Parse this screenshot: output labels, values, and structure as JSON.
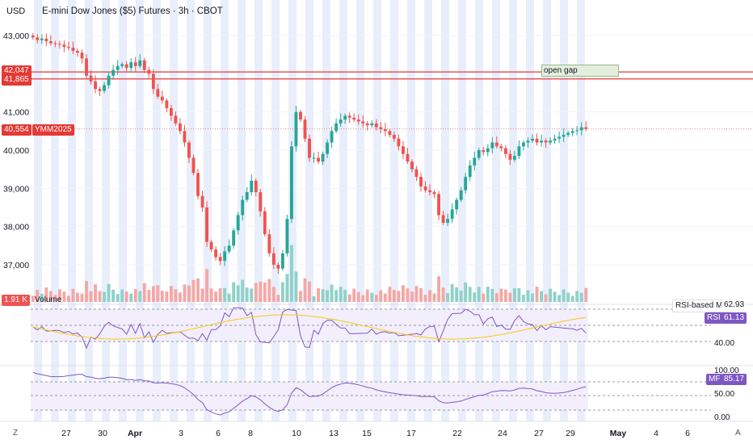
{
  "header": {
    "currency": "USD",
    "title": "E-mini Dow Jones ($5) Futures · 3h · CBOT"
  },
  "price_axis": {
    "ticks": [
      "43,000",
      "41,000",
      "40,000",
      "39,000",
      "38,000",
      "37,000"
    ],
    "tags": [
      {
        "text": "42,047",
        "color": "#f23645"
      },
      {
        "text": "41,865",
        "color": "#f23645"
      },
      {
        "text": "40,554",
        "color": "#f23645"
      },
      {
        "text": "YMM2025",
        "color": "#f23645"
      }
    ],
    "volume_tag": "1.91 K",
    "volume_label": "Volume"
  },
  "annotations": {
    "gap_label": "open gap"
  },
  "rsi_panel": {
    "ma_label": "RSI-based MA",
    "ma_value": "62.93",
    "rsi_label": "RSI",
    "rsi_value": "61.13",
    "ticks": [
      "40.00"
    ]
  },
  "mf_panel": {
    "label": "MF",
    "value": "85.17",
    "ticks": [
      "100.00",
      "50.00",
      "0.00"
    ]
  },
  "time_axis": {
    "labels": [
      "27",
      "30",
      "Apr",
      "3",
      "6",
      "8",
      "10",
      "13",
      "15",
      "17",
      "22",
      "24",
      "27",
      "29",
      "May",
      "4",
      "6"
    ]
  },
  "corners": {
    "left": "Z",
    "right": "A"
  },
  "colors": {
    "up": "#26a69a",
    "down": "#ef5350",
    "line": "#7e57c2",
    "ma": "#f6c90e",
    "level": "#e53935",
    "band": "#e8eefb"
  },
  "chart_data": {
    "type": "candlestick",
    "title": "E-mini Dow Jones ($5) Futures · 3h · CBOT",
    "closes": [
      42950,
      42880,
      42920,
      42850,
      42800,
      42780,
      42760,
      42700,
      42680,
      42600,
      42550,
      42400,
      41950,
      41800,
      41600,
      41550,
      41700,
      41950,
      42100,
      42200,
      42250,
      42150,
      42300,
      42200,
      42350,
      42100,
      42000,
      41600,
      41400,
      41300,
      41100,
      40900,
      40700,
      40500,
      40200,
      39800,
      39400,
      38800,
      38500,
      37600,
      37400,
      37200,
      37100,
      37350,
      37500,
      37900,
      38300,
      38700,
      38900,
      39200,
      38900,
      38400,
      37800,
      37300,
      37000,
      36900,
      37300,
      38200,
      40100,
      41000,
      40800,
      40300,
      39800,
      39800,
      39700,
      39900,
      40200,
      40500,
      40700,
      40800,
      40900,
      40850,
      40800,
      40750,
      40700,
      40650,
      40700,
      40600,
      40550,
      40500,
      40400,
      40300,
      40100,
      39900,
      39700,
      39500,
      39300,
      39050,
      38950,
      38900,
      38850,
      38300,
      38100,
      38200,
      38450,
      38700,
      38950,
      39300,
      39600,
      39800,
      40000,
      39950,
      40050,
      40200,
      40100,
      40050,
      39900,
      39750,
      39850,
      40100,
      40200,
      40250,
      40300,
      40200,
      40250,
      40200,
      40250,
      40300,
      40350,
      40400,
      40450,
      40500,
      40520,
      40600,
      40554
    ],
    "ylim": [
      36600,
      43200
    ]
  }
}
